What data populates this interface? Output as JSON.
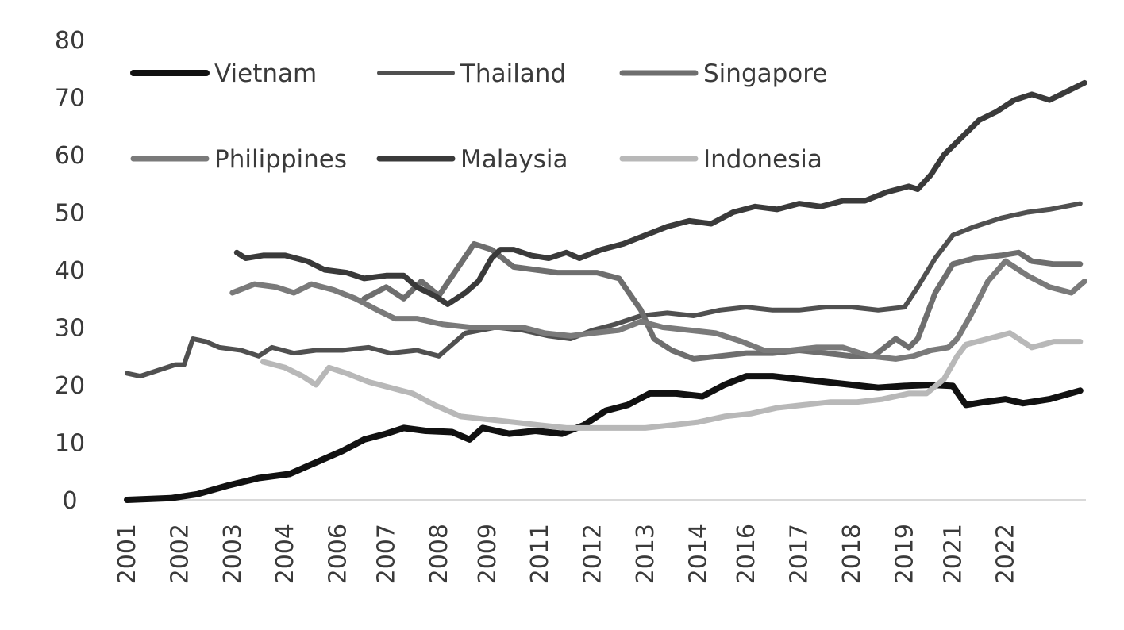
{
  "chart_data": {
    "type": "line",
    "title": "",
    "xlabel": "",
    "ylabel": "",
    "ylim": [
      0,
      80
    ],
    "yticks": [
      0,
      10,
      20,
      30,
      40,
      50,
      60,
      70,
      80
    ],
    "xlim": [
      2001.0,
      2022.83
    ],
    "xticks": [
      {
        "label": "2001",
        "t": 2001.0
      },
      {
        "label": "2002",
        "t": 2002.2
      },
      {
        "label": "2003",
        "t": 2003.4
      },
      {
        "label": "2004",
        "t": 2004.6
      },
      {
        "label": "2006",
        "t": 2005.8
      },
      {
        "label": "2007",
        "t": 2006.9
      },
      {
        "label": "2008",
        "t": 2008.1
      },
      {
        "label": "2009",
        "t": 2009.2
      },
      {
        "label": "2011",
        "t": 2010.4
      },
      {
        "label": "2012",
        "t": 2011.6
      },
      {
        "label": "2013",
        "t": 2012.8
      },
      {
        "label": "2014",
        "t": 2014.0
      },
      {
        "label": "2016",
        "t": 2015.1
      },
      {
        "label": "2017",
        "t": 2016.3
      },
      {
        "label": "2018",
        "t": 2017.5
      },
      {
        "label": "2019",
        "t": 2018.7
      },
      {
        "label": "2021",
        "t": 2019.8
      },
      {
        "label": "2022",
        "t": 2021.0
      }
    ],
    "grid": false,
    "legend": "top-left, 3 columns",
    "series": [
      {
        "name": "Vietnam",
        "color": "#111111",
        "width": 8,
        "points": [
          [
            2001.0,
            0
          ],
          [
            2002.0,
            0.3
          ],
          [
            2002.6,
            1
          ],
          [
            2003.3,
            2.5
          ],
          [
            2004.0,
            3.8
          ],
          [
            2004.7,
            4.5
          ],
          [
            2005.3,
            6.5
          ],
          [
            2005.9,
            8.5
          ],
          [
            2006.4,
            10.5
          ],
          [
            2006.9,
            11.5
          ],
          [
            2007.3,
            12.5
          ],
          [
            2007.8,
            12
          ],
          [
            2008.4,
            11.8
          ],
          [
            2008.8,
            10.5
          ],
          [
            2009.1,
            12.5
          ],
          [
            2009.7,
            11.5
          ],
          [
            2010.3,
            12
          ],
          [
            2010.9,
            11.5
          ],
          [
            2011.4,
            13
          ],
          [
            2011.9,
            15.5
          ],
          [
            2012.4,
            16.5
          ],
          [
            2012.9,
            18.5
          ],
          [
            2013.5,
            18.5
          ],
          [
            2014.1,
            18
          ],
          [
            2014.6,
            20
          ],
          [
            2015.1,
            21.5
          ],
          [
            2015.7,
            21.5
          ],
          [
            2016.3,
            21
          ],
          [
            2016.9,
            20.5
          ],
          [
            2017.5,
            20
          ],
          [
            2018.1,
            19.5
          ],
          [
            2018.7,
            19.8
          ],
          [
            2019.3,
            20
          ],
          [
            2019.8,
            19.8
          ],
          [
            2020.1,
            16.5
          ],
          [
            2020.5,
            17
          ],
          [
            2021.0,
            17.5
          ],
          [
            2021.4,
            16.8
          ],
          [
            2022.0,
            17.5
          ],
          [
            2022.7,
            19
          ]
        ]
      },
      {
        "name": "Thailand",
        "color": "#505050",
        "width": 6,
        "points": [
          [
            2001.0,
            22
          ],
          [
            2001.3,
            21.5
          ],
          [
            2001.7,
            22.5
          ],
          [
            2002.1,
            23.5
          ],
          [
            2002.3,
            23.5
          ],
          [
            2002.5,
            28
          ],
          [
            2002.8,
            27.5
          ],
          [
            2003.1,
            26.5
          ],
          [
            2003.6,
            26
          ],
          [
            2004.0,
            25
          ],
          [
            2004.3,
            26.5
          ],
          [
            2004.8,
            25.5
          ],
          [
            2005.3,
            26
          ],
          [
            2005.9,
            26
          ],
          [
            2006.5,
            26.5
          ],
          [
            2007.0,
            25.5
          ],
          [
            2007.6,
            26
          ],
          [
            2008.1,
            25
          ],
          [
            2008.7,
            29
          ],
          [
            2009.4,
            30
          ],
          [
            2010.0,
            29.5
          ],
          [
            2010.6,
            28.5
          ],
          [
            2011.1,
            28
          ],
          [
            2011.6,
            29.5
          ],
          [
            2012.1,
            30.5
          ],
          [
            2012.7,
            32
          ],
          [
            2013.3,
            32.5
          ],
          [
            2013.9,
            32
          ],
          [
            2014.5,
            33
          ],
          [
            2015.1,
            33.5
          ],
          [
            2015.7,
            33
          ],
          [
            2016.3,
            33
          ],
          [
            2016.9,
            33.5
          ],
          [
            2017.5,
            33.5
          ],
          [
            2018.1,
            33
          ],
          [
            2018.7,
            33.5
          ],
          [
            2019.0,
            37
          ],
          [
            2019.4,
            42
          ],
          [
            2019.8,
            46
          ],
          [
            2020.3,
            47.5
          ],
          [
            2020.9,
            49
          ],
          [
            2021.5,
            50
          ],
          [
            2022.0,
            50.5
          ],
          [
            2022.7,
            51.5
          ]
        ]
      },
      {
        "name": "Singapore",
        "color": "#6e6e6e",
        "width": 7,
        "points": [
          [
            2006.4,
            35
          ],
          [
            2006.9,
            37
          ],
          [
            2007.3,
            35
          ],
          [
            2007.7,
            38
          ],
          [
            2008.1,
            35.5
          ],
          [
            2008.5,
            40
          ],
          [
            2008.9,
            44.5
          ],
          [
            2009.3,
            43.5
          ],
          [
            2009.8,
            40.5
          ],
          [
            2010.3,
            40
          ],
          [
            2010.8,
            39.5
          ],
          [
            2011.2,
            39.5
          ],
          [
            2011.7,
            39.5
          ],
          [
            2012.2,
            38.5
          ],
          [
            2012.7,
            33
          ],
          [
            2013.0,
            28
          ],
          [
            2013.4,
            26
          ],
          [
            2013.9,
            24.5
          ],
          [
            2014.5,
            25
          ],
          [
            2015.1,
            25.5
          ],
          [
            2015.7,
            25.5
          ],
          [
            2016.3,
            26
          ],
          [
            2016.9,
            25.5
          ],
          [
            2017.5,
            25
          ],
          [
            2018.0,
            25
          ],
          [
            2018.5,
            28
          ],
          [
            2018.8,
            26.5
          ],
          [
            2019.0,
            28
          ],
          [
            2019.4,
            36
          ],
          [
            2019.8,
            41
          ],
          [
            2020.3,
            42
          ],
          [
            2020.9,
            42.5
          ],
          [
            2021.3,
            43
          ],
          [
            2021.6,
            41.5
          ],
          [
            2022.1,
            41
          ],
          [
            2022.7,
            41
          ]
        ]
      },
      {
        "name": "Philippines",
        "color": "#7a7a7a",
        "width": 7,
        "points": [
          [
            2003.4,
            36
          ],
          [
            2003.9,
            37.5
          ],
          [
            2004.4,
            37
          ],
          [
            2004.8,
            36
          ],
          [
            2005.2,
            37.5
          ],
          [
            2005.7,
            36.5
          ],
          [
            2006.2,
            35
          ],
          [
            2006.7,
            33
          ],
          [
            2007.1,
            31.5
          ],
          [
            2007.6,
            31.5
          ],
          [
            2008.2,
            30.5
          ],
          [
            2008.8,
            30
          ],
          [
            2009.4,
            30
          ],
          [
            2010.0,
            30
          ],
          [
            2010.5,
            29
          ],
          [
            2011.1,
            28.5
          ],
          [
            2011.6,
            29
          ],
          [
            2012.2,
            29.5
          ],
          [
            2012.7,
            31
          ],
          [
            2013.2,
            30
          ],
          [
            2013.8,
            29.5
          ],
          [
            2014.4,
            29
          ],
          [
            2015.0,
            27.5
          ],
          [
            2015.5,
            26
          ],
          [
            2016.1,
            26
          ],
          [
            2016.7,
            26.5
          ],
          [
            2017.3,
            26.5
          ],
          [
            2017.9,
            25
          ],
          [
            2018.5,
            24.5
          ],
          [
            2018.9,
            25
          ],
          [
            2019.3,
            26
          ],
          [
            2019.7,
            26.5
          ],
          [
            2019.9,
            28
          ],
          [
            2020.2,
            32
          ],
          [
            2020.6,
            38
          ],
          [
            2021.0,
            41.5
          ],
          [
            2021.5,
            39
          ],
          [
            2022.0,
            37
          ],
          [
            2022.5,
            36
          ],
          [
            2022.8,
            38
          ]
        ]
      },
      {
        "name": "Malaysia",
        "color": "#3a3a3a",
        "width": 7,
        "points": [
          [
            2003.5,
            43
          ],
          [
            2003.7,
            42
          ],
          [
            2004.1,
            42.5
          ],
          [
            2004.6,
            42.5
          ],
          [
            2005.1,
            41.5
          ],
          [
            2005.5,
            40
          ],
          [
            2006.0,
            39.5
          ],
          [
            2006.4,
            38.5
          ],
          [
            2006.9,
            39
          ],
          [
            2007.3,
            39
          ],
          [
            2007.6,
            37
          ],
          [
            2008.0,
            35.5
          ],
          [
            2008.3,
            34
          ],
          [
            2008.7,
            36
          ],
          [
            2009.0,
            38
          ],
          [
            2009.3,
            42
          ],
          [
            2009.5,
            43.5
          ],
          [
            2009.8,
            43.5
          ],
          [
            2010.2,
            42.5
          ],
          [
            2010.6,
            42
          ],
          [
            2011.0,
            43
          ],
          [
            2011.3,
            42
          ],
          [
            2011.8,
            43.5
          ],
          [
            2012.3,
            44.5
          ],
          [
            2012.8,
            46
          ],
          [
            2013.3,
            47.5
          ],
          [
            2013.8,
            48.5
          ],
          [
            2014.3,
            48
          ],
          [
            2014.8,
            50
          ],
          [
            2015.3,
            51
          ],
          [
            2015.8,
            50.5
          ],
          [
            2016.3,
            51.5
          ],
          [
            2016.8,
            51
          ],
          [
            2017.3,
            52
          ],
          [
            2017.8,
            52
          ],
          [
            2018.3,
            53.5
          ],
          [
            2018.8,
            54.5
          ],
          [
            2019.0,
            54
          ],
          [
            2019.3,
            56.5
          ],
          [
            2019.6,
            60
          ],
          [
            2020.0,
            63
          ],
          [
            2020.4,
            66
          ],
          [
            2020.8,
            67.5
          ],
          [
            2021.2,
            69.5
          ],
          [
            2021.6,
            70.5
          ],
          [
            2022.0,
            69.5
          ],
          [
            2022.4,
            71
          ],
          [
            2022.8,
            72.5
          ]
        ]
      },
      {
        "name": "Indonesia",
        "color": "#b8b8b8",
        "width": 7,
        "points": [
          [
            2004.1,
            24
          ],
          [
            2004.6,
            23
          ],
          [
            2005.0,
            21.5
          ],
          [
            2005.3,
            20
          ],
          [
            2005.6,
            23
          ],
          [
            2006.0,
            22
          ],
          [
            2006.5,
            20.5
          ],
          [
            2007.0,
            19.5
          ],
          [
            2007.5,
            18.5
          ],
          [
            2008.0,
            16.5
          ],
          [
            2008.6,
            14.5
          ],
          [
            2009.2,
            14
          ],
          [
            2009.8,
            13.5
          ],
          [
            2010.4,
            13
          ],
          [
            2011.0,
            12.5
          ],
          [
            2011.6,
            12.5
          ],
          [
            2012.2,
            12.5
          ],
          [
            2012.8,
            12.5
          ],
          [
            2013.4,
            13
          ],
          [
            2014.0,
            13.5
          ],
          [
            2014.6,
            14.5
          ],
          [
            2015.2,
            15
          ],
          [
            2015.8,
            16
          ],
          [
            2016.4,
            16.5
          ],
          [
            2017.0,
            17
          ],
          [
            2017.6,
            17
          ],
          [
            2018.2,
            17.5
          ],
          [
            2018.8,
            18.5
          ],
          [
            2019.2,
            18.5
          ],
          [
            2019.6,
            21
          ],
          [
            2019.9,
            25
          ],
          [
            2020.1,
            27
          ],
          [
            2020.6,
            28
          ],
          [
            2021.1,
            29
          ],
          [
            2021.6,
            26.5
          ],
          [
            2022.1,
            27.5
          ],
          [
            2022.7,
            27.5
          ]
        ]
      }
    ]
  }
}
